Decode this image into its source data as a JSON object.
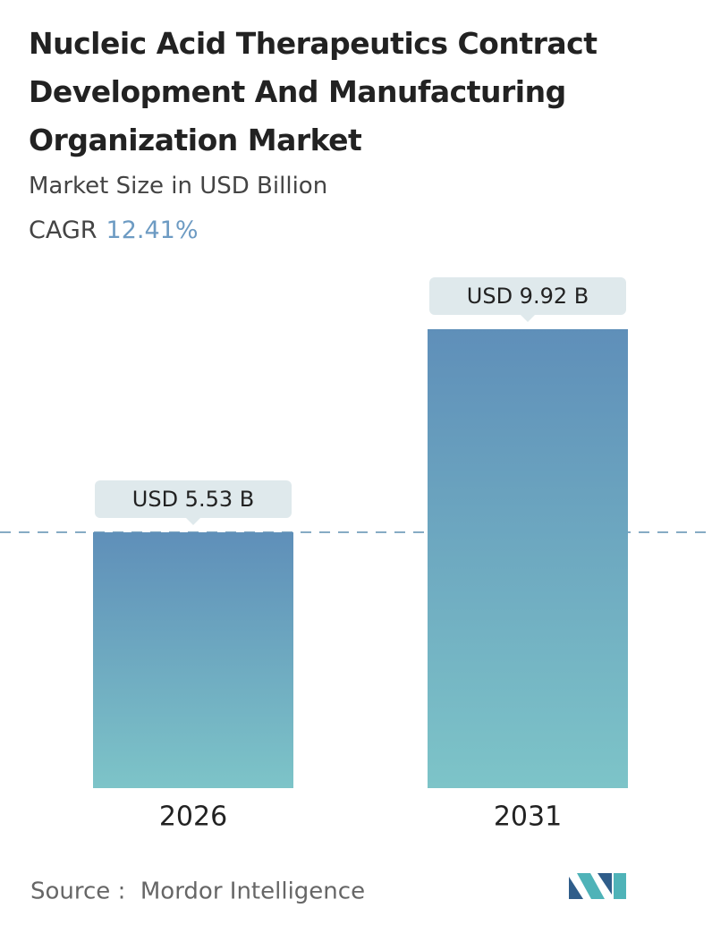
{
  "chart_data": {
    "type": "bar",
    "title": "Nucleic Acid Therapeutics Contract Development And Manufacturing Organization Market",
    "subtitle": "Market Size in USD Billion",
    "cagr_label": "CAGR",
    "cagr": "12.41%",
    "categories": [
      "2026",
      "2031"
    ],
    "values": [
      5.53,
      9.92
    ],
    "value_labels": [
      "USD 5.53 B",
      "USD 9.92 B"
    ],
    "color": [
      "#5f8fb9",
      "#7dc4c8"
    ],
    "source": "Source :  Mordor Intelligence"
  }
}
